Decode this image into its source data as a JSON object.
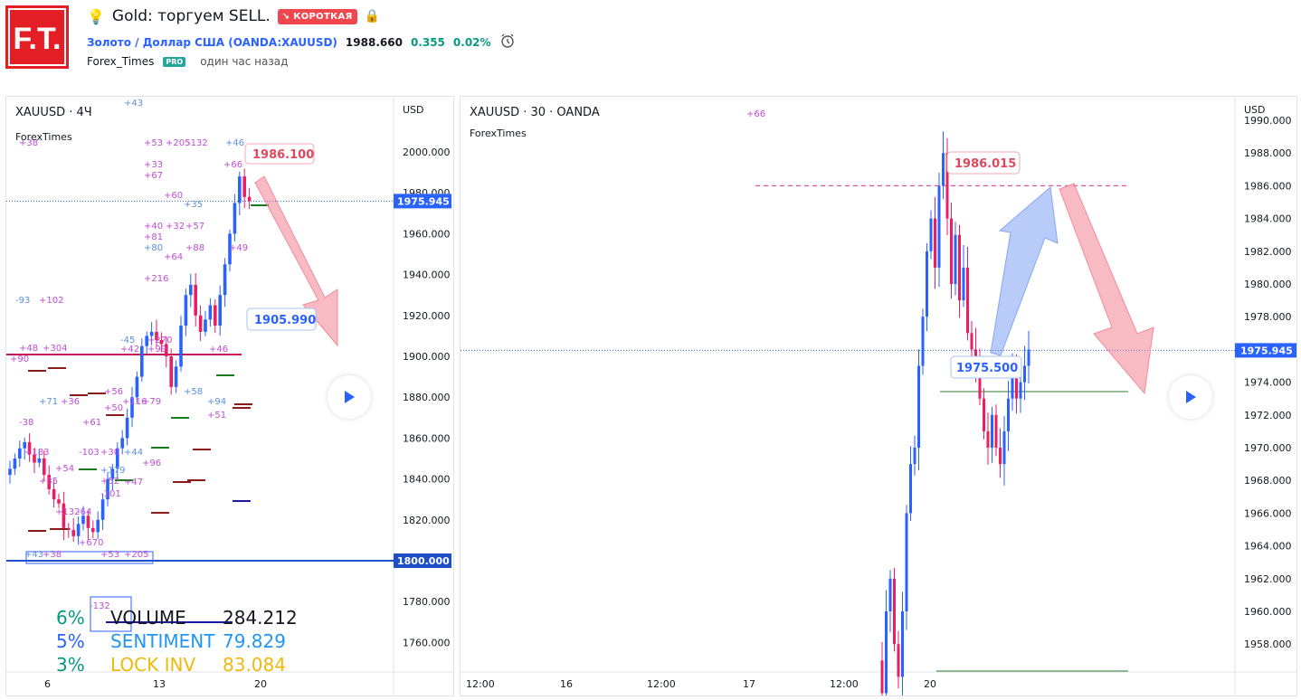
{
  "header": {
    "title": "Gold: торгуем SELL.",
    "badge": "↘ КОРОТКАЯ",
    "symbol_name": "Золото / Доллар США (OANDA:XAUUSD)",
    "price": "1988.660",
    "change": "0.355",
    "change_pct": "0.02%",
    "author": "Forex_Times",
    "pro_label": "PRO",
    "published": "один час назад",
    "logo_text": "F.T."
  },
  "left_chart": {
    "title": "XAUUSD · 4Ч",
    "subtitle": "ForexTimes",
    "currency": "USD",
    "y_ticks": [
      "2000.000",
      "1980.000",
      "1960.000",
      "1940.000",
      "1920.000",
      "1900.000",
      "1880.000",
      "1860.000",
      "1840.000",
      "1820.000",
      "1800.000",
      "1780.000",
      "1760.000"
    ],
    "x_ticks": [
      "6",
      "13",
      "20"
    ],
    "last_price": "1975.945",
    "level_price": "1800.000",
    "callout_high": "1986.100",
    "callout_low": "1905.990",
    "stats": [
      {
        "pct": "6%",
        "label": "VOLUME",
        "value": "284.212"
      },
      {
        "pct": "5%",
        "label": "SENTIMENT",
        "value": "79.829"
      },
      {
        "pct": "3%",
        "label": "LOCK INV",
        "value": "83.084"
      }
    ],
    "annotations": [
      {
        "t": "+43"
      },
      {
        "t": "+38"
      },
      {
        "t": "+53"
      },
      {
        "t": "+205"
      },
      {
        "t": "-132"
      },
      {
        "t": "+46"
      },
      {
        "t": "+33"
      },
      {
        "t": "+66"
      },
      {
        "t": "+67"
      },
      {
        "t": "+60"
      },
      {
        "t": "+35"
      },
      {
        "t": "+40"
      },
      {
        "t": "+32"
      },
      {
        "t": "+57"
      },
      {
        "t": "+81"
      },
      {
        "t": "+80"
      },
      {
        "t": "+88"
      },
      {
        "t": "+49"
      },
      {
        "t": "+64"
      },
      {
        "t": "+216"
      },
      {
        "t": "-93"
      },
      {
        "t": "+102"
      },
      {
        "t": "+90"
      },
      {
        "t": "+48"
      },
      {
        "t": "+304"
      },
      {
        "t": "-45"
      },
      {
        "t": "+270"
      },
      {
        "t": "+42"
      },
      {
        "t": "+99"
      },
      {
        "t": "+46"
      },
      {
        "t": "+71"
      },
      {
        "t": "+36"
      },
      {
        "t": "+56"
      },
      {
        "t": "+116"
      },
      {
        "t": "+79"
      },
      {
        "t": "+94"
      },
      {
        "t": "+51"
      },
      {
        "t": "-38"
      },
      {
        "t": "+61"
      },
      {
        "t": "+50"
      },
      {
        "t": "+58"
      },
      {
        "t": "+183"
      },
      {
        "t": "-103"
      },
      {
        "t": "+54"
      },
      {
        "t": "+30"
      },
      {
        "t": "+44"
      },
      {
        "t": "+96"
      },
      {
        "t": "+47"
      },
      {
        "t": "+35"
      },
      {
        "t": "+52"
      },
      {
        "t": "+179"
      },
      {
        "t": "-101"
      },
      {
        "t": "+132"
      },
      {
        "t": "-64"
      },
      {
        "t": "+670"
      }
    ]
  },
  "right_chart": {
    "title": "XAUUSD · 30 · OANDA",
    "subtitle": "ForexTimes",
    "currency": "USD",
    "top_note": "+66",
    "y_ticks": [
      "1990.000",
      "1988.000",
      "1986.000",
      "1984.000",
      "1982.000",
      "1980.000",
      "1978.000",
      "1976.000",
      "1974.000",
      "1972.000",
      "1970.000",
      "1968.000",
      "1966.000",
      "1964.000",
      "1962.000",
      "1960.000",
      "1958.000"
    ],
    "x_ticks": [
      "12:00",
      "16",
      "12:00",
      "17",
      "12:00",
      "20"
    ],
    "last_price": "1975.945",
    "callout_high": "1986.015",
    "callout_mid": "1975.500"
  },
  "colors": {
    "up": "#2962ff",
    "down": "#e91e63",
    "accent": "#2962ff",
    "brand": "#e31e24"
  }
}
